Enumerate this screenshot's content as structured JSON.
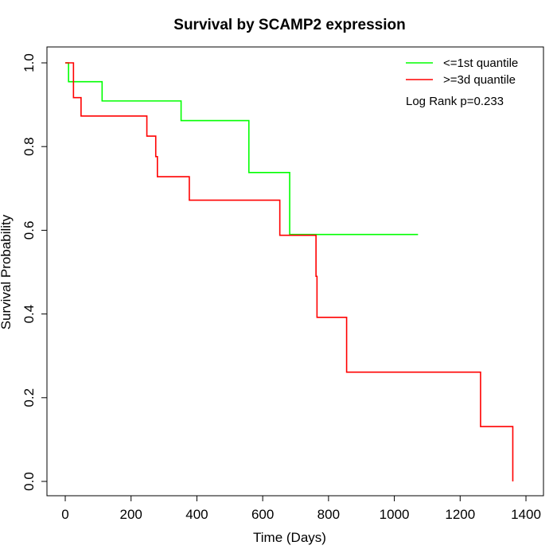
{
  "chart_data": {
    "type": "line",
    "title": "Survival by SCAMP2 expression",
    "xlabel": "Time (Days)",
    "ylabel": "Survival Probability",
    "xlim": [
      0,
      1400
    ],
    "ylim": [
      0,
      1.0
    ],
    "x_ticks": [
      0,
      200,
      400,
      600,
      800,
      1000,
      1200,
      1400
    ],
    "y_ticks": [
      0.0,
      0.2,
      0.4,
      0.6,
      0.8,
      1.0
    ],
    "x_tick_labels": [
      "0",
      "200",
      "400",
      "600",
      "800",
      "1000",
      "1200",
      "1400"
    ],
    "y_tick_labels": [
      "0.0",
      "0.2",
      "0.4",
      "0.6",
      "0.8",
      "1.0"
    ],
    "grid": false,
    "legend_position": "top-right",
    "annotation": "Log Rank p=0.233",
    "series": [
      {
        "name": "<=1st quantile",
        "color": "#00ff00",
        "steps": [
          [
            0,
            1.0
          ],
          [
            10,
            0.955
          ],
          [
            112,
            0.909
          ],
          [
            352,
            0.862
          ],
          [
            558,
            0.738
          ],
          [
            682,
            0.59
          ],
          [
            1072,
            0.59
          ]
        ]
      },
      {
        "name": ">=3d quantile",
        "color": "#ff0000",
        "steps": [
          [
            0,
            1.0
          ],
          [
            25,
            0.917
          ],
          [
            48,
            0.873
          ],
          [
            248,
            0.825
          ],
          [
            275,
            0.776
          ],
          [
            280,
            0.728
          ],
          [
            377,
            0.672
          ],
          [
            652,
            0.588
          ],
          [
            762,
            0.49
          ],
          [
            765,
            0.392
          ],
          [
            855,
            0.261
          ],
          [
            1262,
            0.131
          ],
          [
            1360,
            0.0
          ]
        ]
      }
    ]
  }
}
